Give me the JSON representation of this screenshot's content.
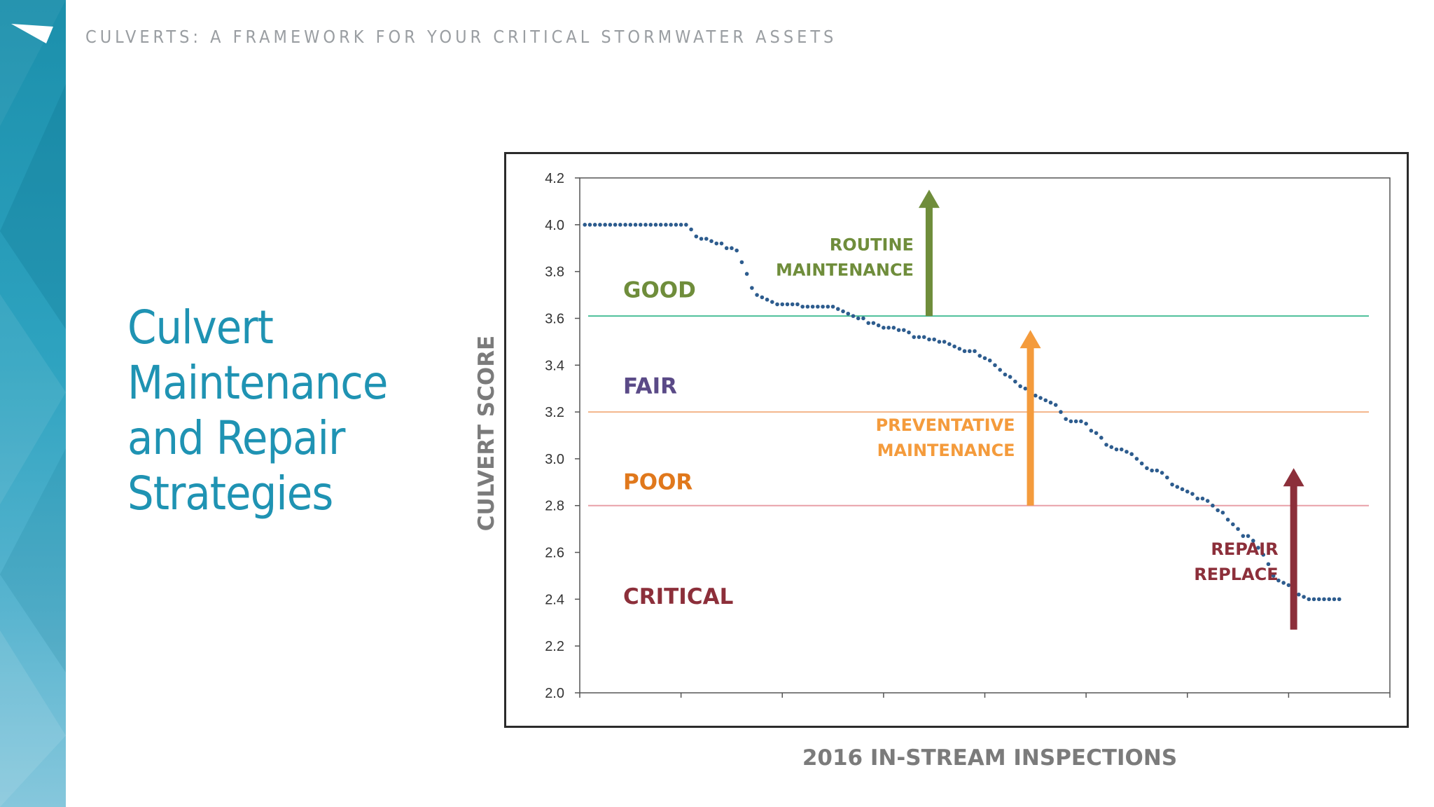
{
  "header": {
    "title": "CULVERTS: A FRAMEWORK FOR YOUR CRITICAL STORMWATER ASSETS"
  },
  "slide": {
    "title_lines": [
      "Culvert",
      "Maintenance",
      "and Repair",
      "Strategies"
    ]
  },
  "colors": {
    "accent": "#1f93b3",
    "good": "#6f8d3b",
    "fair": "#5a4a87",
    "poor": "#e0781c",
    "critical": "#8c2f3a",
    "points": "#2d5c8e",
    "line_good": "#4cbf9a",
    "line_fair": "#f3b58a",
    "line_poor": "#e8a0a8"
  },
  "chart_data": {
    "type": "scatter",
    "xlabel": "2016 IN-STREAM INSPECTIONS",
    "ylabel": "CULVERT SCORE",
    "ylim": [
      2.0,
      4.2
    ],
    "yticks": [
      "2.0",
      "2.2",
      "2.4",
      "2.6",
      "2.8",
      "3.0",
      "3.2",
      "3.4",
      "3.6",
      "3.8",
      "4.0",
      "4.2"
    ],
    "xlim": [
      0,
      160
    ],
    "x_tick_count": 9,
    "thresholds": [
      {
        "value": 3.61,
        "color": "#4cbf9a"
      },
      {
        "value": 3.2,
        "color": "#f3b58a"
      },
      {
        "value": 2.8,
        "color": "#e8a0a8"
      }
    ],
    "zones": [
      {
        "label": "GOOD",
        "y": 3.69,
        "color": "#6f8d3b"
      },
      {
        "label": "FAIR",
        "y": 3.28,
        "color": "#5a4a87"
      },
      {
        "label": "POOR",
        "y": 2.87,
        "color": "#e0781c"
      },
      {
        "label": "CRITICAL",
        "y": 2.38,
        "color": "#8c2f3a"
      }
    ],
    "annotations": [
      {
        "lines": [
          "ROUTINE",
          "MAINTENANCE"
        ],
        "color": "#6f8d3b",
        "x": 69,
        "y_from": 3.61,
        "y_to": 4.15
      },
      {
        "lines": [
          "PREVENTATIVE",
          "MAINTENANCE"
        ],
        "color": "#f49b3c",
        "x": 89,
        "y_from": 2.8,
        "y_to": 3.55
      },
      {
        "lines": [
          "REPAIR",
          "REPLACE"
        ],
        "color": "#8c2f3a",
        "x": 141,
        "y_from": 2.27,
        "y_to": 2.96
      }
    ],
    "series": [
      {
        "name": "Culvert score",
        "x": [
          1,
          2,
          3,
          4,
          5,
          6,
          7,
          8,
          9,
          10,
          11,
          12,
          13,
          14,
          15,
          16,
          17,
          18,
          19,
          20,
          21,
          22,
          23,
          24,
          25,
          26,
          27,
          28,
          29,
          30,
          31,
          32,
          33,
          34,
          35,
          36,
          37,
          38,
          39,
          40,
          41,
          42,
          43,
          44,
          45,
          46,
          47,
          48,
          49,
          50,
          51,
          52,
          53,
          54,
          55,
          56,
          57,
          58,
          59,
          60,
          61,
          62,
          63,
          64,
          65,
          66,
          67,
          68,
          69,
          70,
          71,
          72,
          73,
          74,
          75,
          76,
          77,
          78,
          79,
          80,
          81,
          82,
          83,
          84,
          85,
          86,
          87,
          88,
          89,
          90,
          91,
          92,
          93,
          94,
          95,
          96,
          97,
          98,
          99,
          100,
          101,
          102,
          103,
          104,
          105,
          106,
          107,
          108,
          109,
          110,
          111,
          112,
          113,
          114,
          115,
          116,
          117,
          118,
          119,
          120,
          121,
          122,
          123,
          124,
          125,
          126,
          127,
          128,
          129,
          130,
          131,
          132,
          133,
          134,
          135,
          136,
          137,
          138,
          139,
          140,
          141,
          142,
          143,
          144,
          145,
          146,
          147,
          148,
          149,
          150
        ],
        "values": [
          4.0,
          4.0,
          4.0,
          4.0,
          4.0,
          4.0,
          4.0,
          4.0,
          4.0,
          4.0,
          4.0,
          4.0,
          4.0,
          4.0,
          4.0,
          4.0,
          4.0,
          4.0,
          4.0,
          4.0,
          4.0,
          3.98,
          3.95,
          3.94,
          3.94,
          3.93,
          3.92,
          3.92,
          3.9,
          3.9,
          3.89,
          3.84,
          3.79,
          3.73,
          3.7,
          3.69,
          3.68,
          3.67,
          3.66,
          3.66,
          3.66,
          3.66,
          3.66,
          3.65,
          3.65,
          3.65,
          3.65,
          3.65,
          3.65,
          3.65,
          3.64,
          3.63,
          3.62,
          3.61,
          3.6,
          3.6,
          3.58,
          3.58,
          3.57,
          3.56,
          3.56,
          3.56,
          3.55,
          3.55,
          3.54,
          3.52,
          3.52,
          3.52,
          3.51,
          3.51,
          3.5,
          3.5,
          3.49,
          3.48,
          3.47,
          3.46,
          3.46,
          3.46,
          3.44,
          3.43,
          3.42,
          3.4,
          3.38,
          3.36,
          3.35,
          3.33,
          3.31,
          3.3,
          3.29,
          3.27,
          3.26,
          3.25,
          3.24,
          3.23,
          3.2,
          3.17,
          3.16,
          3.16,
          3.16,
          3.15,
          3.12,
          3.11,
          3.09,
          3.06,
          3.05,
          3.04,
          3.04,
          3.03,
          3.02,
          3.0,
          2.98,
          2.96,
          2.95,
          2.95,
          2.94,
          2.92,
          2.89,
          2.88,
          2.87,
          2.86,
          2.85,
          2.83,
          2.83,
          2.82,
          2.8,
          2.78,
          2.77,
          2.74,
          2.72,
          2.7,
          2.67,
          2.67,
          2.65,
          2.62,
          2.59,
          2.55,
          2.5,
          2.48,
          2.47,
          2.46,
          2.44,
          2.42,
          2.41,
          2.4,
          2.4,
          2.4,
          2.4,
          2.4,
          2.4,
          2.4
        ]
      }
    ]
  }
}
